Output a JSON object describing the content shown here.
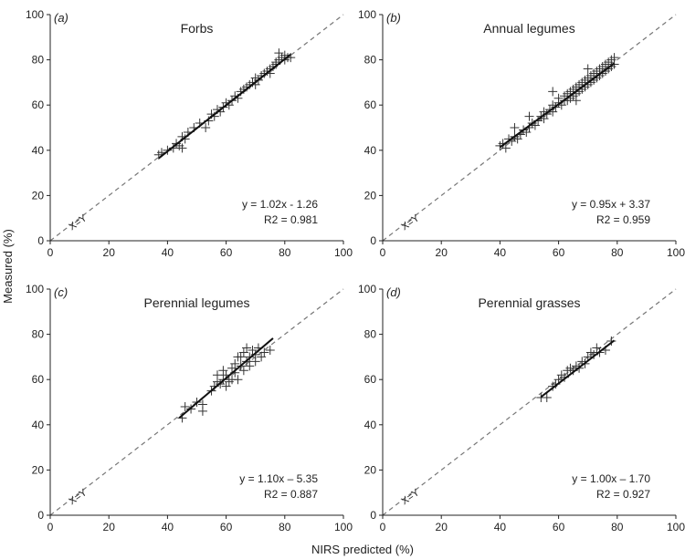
{
  "figure": {
    "ylabel": "Measured (%)",
    "xlabel": "NIRS predicted (%)"
  },
  "colors": {
    "axis": "#222222",
    "marker": "#333333",
    "fit": "#111111",
    "identity": "#777777"
  },
  "chart_data": [
    {
      "type": "scatter",
      "panel": "(a)",
      "title": "Forbs",
      "xlim": [
        0,
        100
      ],
      "ylim": [
        0,
        100
      ],
      "xticks": [
        "0",
        "20",
        "40",
        "60",
        "80",
        "100"
      ],
      "yticks": [
        "0",
        "20",
        "40",
        "60",
        "80",
        "100"
      ],
      "identity_label": "X=Y",
      "equation": "y = 1.02x - 1.26",
      "r2": "R2 = 0.981",
      "fit": {
        "slope": 1.02,
        "intercept": -1.26,
        "x": [
          37,
          82
        ]
      },
      "points": [
        [
          37,
          38
        ],
        [
          38,
          39
        ],
        [
          40,
          40
        ],
        [
          42,
          41
        ],
        [
          43,
          43
        ],
        [
          44,
          42
        ],
        [
          45,
          46
        ],
        [
          45,
          41
        ],
        [
          46,
          45
        ],
        [
          47,
          48
        ],
        [
          49,
          50
        ],
        [
          51,
          52
        ],
        [
          53,
          50
        ],
        [
          54,
          53
        ],
        [
          55,
          56
        ],
        [
          56,
          55
        ],
        [
          57,
          58
        ],
        [
          58,
          57
        ],
        [
          59,
          59
        ],
        [
          60,
          61
        ],
        [
          61,
          60
        ],
        [
          62,
          62
        ],
        [
          63,
          64
        ],
        [
          64,
          63
        ],
        [
          65,
          66
        ],
        [
          66,
          67
        ],
        [
          67,
          68
        ],
        [
          68,
          69
        ],
        [
          69,
          70
        ],
        [
          70,
          72
        ],
        [
          70,
          69
        ],
        [
          71,
          71
        ],
        [
          72,
          73
        ],
        [
          73,
          74
        ],
        [
          74,
          75
        ],
        [
          75,
          76
        ],
        [
          75,
          74
        ],
        [
          76,
          77
        ],
        [
          77,
          78
        ],
        [
          77,
          79
        ],
        [
          78,
          80
        ],
        [
          78,
          83
        ],
        [
          79,
          81
        ],
        [
          80,
          80
        ],
        [
          80,
          82
        ],
        [
          81,
          81
        ],
        [
          82,
          81
        ]
      ]
    },
    {
      "type": "scatter",
      "panel": "(b)",
      "title": "Annual legumes",
      "xlim": [
        0,
        100
      ],
      "ylim": [
        0,
        100
      ],
      "xticks": [
        "0",
        "20",
        "40",
        "60",
        "80",
        "100"
      ],
      "yticks": [
        "0",
        "20",
        "40",
        "60",
        "80",
        "100"
      ],
      "identity_label": "X=Y",
      "equation": "y = 0.95x + 3.37",
      "r2": "R2 = 0.959",
      "fit": {
        "slope": 0.95,
        "intercept": 3.37,
        "x": [
          40,
          79
        ]
      },
      "points": [
        [
          40,
          42
        ],
        [
          41,
          43
        ],
        [
          42,
          41
        ],
        [
          43,
          45
        ],
        [
          44,
          44
        ],
        [
          45,
          46
        ],
        [
          46,
          45
        ],
        [
          47,
          47
        ],
        [
          48,
          49
        ],
        [
          49,
          48
        ],
        [
          50,
          50
        ],
        [
          51,
          52
        ],
        [
          52,
          51
        ],
        [
          53,
          53
        ],
        [
          54,
          55
        ],
        [
          55,
          54
        ],
        [
          55,
          57
        ],
        [
          56,
          56
        ],
        [
          57,
          58
        ],
        [
          58,
          57
        ],
        [
          58,
          60
        ],
        [
          59,
          59
        ],
        [
          60,
          61
        ],
        [
          60,
          63
        ],
        [
          61,
          60
        ],
        [
          62,
          62
        ],
        [
          62,
          64
        ],
        [
          63,
          65
        ],
        [
          63,
          62
        ],
        [
          64,
          63
        ],
        [
          64,
          66
        ],
        [
          65,
          67
        ],
        [
          65,
          64
        ],
        [
          66,
          65
        ],
        [
          66,
          68
        ],
        [
          67,
          69
        ],
        [
          67,
          66
        ],
        [
          68,
          70
        ],
        [
          68,
          67
        ],
        [
          69,
          71
        ],
        [
          69,
          68
        ],
        [
          70,
          72
        ],
        [
          70,
          69
        ],
        [
          71,
          73
        ],
        [
          71,
          70
        ],
        [
          72,
          74
        ],
        [
          72,
          71
        ],
        [
          73,
          75
        ],
        [
          73,
          72
        ],
        [
          74,
          76
        ],
        [
          74,
          73
        ],
        [
          75,
          77
        ],
        [
          75,
          74
        ],
        [
          76,
          75
        ],
        [
          76,
          78
        ],
        [
          77,
          79
        ],
        [
          77,
          76
        ],
        [
          78,
          80
        ],
        [
          78,
          77
        ],
        [
          79,
          78
        ],
        [
          79,
          81
        ],
        [
          45,
          50
        ],
        [
          50,
          55
        ],
        [
          58,
          66
        ],
        [
          66,
          62
        ],
        [
          70,
          76
        ]
      ]
    },
    {
      "type": "scatter",
      "panel": "(c)",
      "title": "Perennial legumes",
      "xlim": [
        0,
        100
      ],
      "ylim": [
        0,
        100
      ],
      "xticks": [
        "0",
        "20",
        "40",
        "60",
        "80",
        "100"
      ],
      "yticks": [
        "0",
        "20",
        "40",
        "60",
        "80",
        "100"
      ],
      "identity_label": "X=Y",
      "equation": "y = 1.10x – 5.35",
      "r2": "R2 = 0.887",
      "fit": {
        "slope": 1.1,
        "intercept": -5.35,
        "x": [
          44,
          76
        ]
      },
      "points": [
        [
          45,
          43
        ],
        [
          46,
          48
        ],
        [
          48,
          47
        ],
        [
          50,
          50
        ],
        [
          52,
          46
        ],
        [
          52,
          49
        ],
        [
          55,
          55
        ],
        [
          56,
          57
        ],
        [
          57,
          59
        ],
        [
          57,
          62
        ],
        [
          58,
          58
        ],
        [
          59,
          60
        ],
        [
          59,
          64
        ],
        [
          60,
          57
        ],
        [
          60,
          62
        ],
        [
          61,
          59
        ],
        [
          62,
          65
        ],
        [
          63,
          63
        ],
        [
          63,
          67
        ],
        [
          64,
          60
        ],
        [
          65,
          66
        ],
        [
          65,
          70
        ],
        [
          66,
          64
        ],
        [
          66,
          72
        ],
        [
          67,
          68
        ],
        [
          67,
          74
        ],
        [
          68,
          70
        ],
        [
          68,
          66
        ],
        [
          69,
          73
        ],
        [
          70,
          71
        ],
        [
          70,
          68
        ],
        [
          71,
          74
        ],
        [
          72,
          70
        ],
        [
          73,
          72
        ],
        [
          75,
          73
        ],
        [
          62,
          60
        ],
        [
          64,
          70
        ]
      ]
    },
    {
      "type": "scatter",
      "panel": "(d)",
      "title": "Perennial grasses",
      "xlim": [
        0,
        100
      ],
      "ylim": [
        0,
        100
      ],
      "xticks": [
        "0",
        "20",
        "40",
        "60",
        "80",
        "100"
      ],
      "yticks": [
        "0",
        "20",
        "40",
        "60",
        "80",
        "100"
      ],
      "identity_label": "X=Y",
      "equation": "y = 1.00x – 1.70",
      "r2": "R2 = 0.927",
      "fit": {
        "slope": 1.0,
        "intercept": -1.7,
        "x": [
          54,
          79
        ]
      },
      "points": [
        [
          54,
          52
        ],
        [
          56,
          52
        ],
        [
          58,
          57
        ],
        [
          59,
          58
        ],
        [
          60,
          60
        ],
        [
          61,
          62
        ],
        [
          62,
          61
        ],
        [
          63,
          64
        ],
        [
          64,
          65
        ],
        [
          65,
          64
        ],
        [
          66,
          66
        ],
        [
          67,
          65
        ],
        [
          68,
          68
        ],
        [
          69,
          67
        ],
        [
          70,
          70
        ],
        [
          71,
          72
        ],
        [
          72,
          71
        ],
        [
          73,
          74
        ],
        [
          74,
          72
        ],
        [
          76,
          73
        ],
        [
          78,
          77
        ]
      ]
    }
  ]
}
